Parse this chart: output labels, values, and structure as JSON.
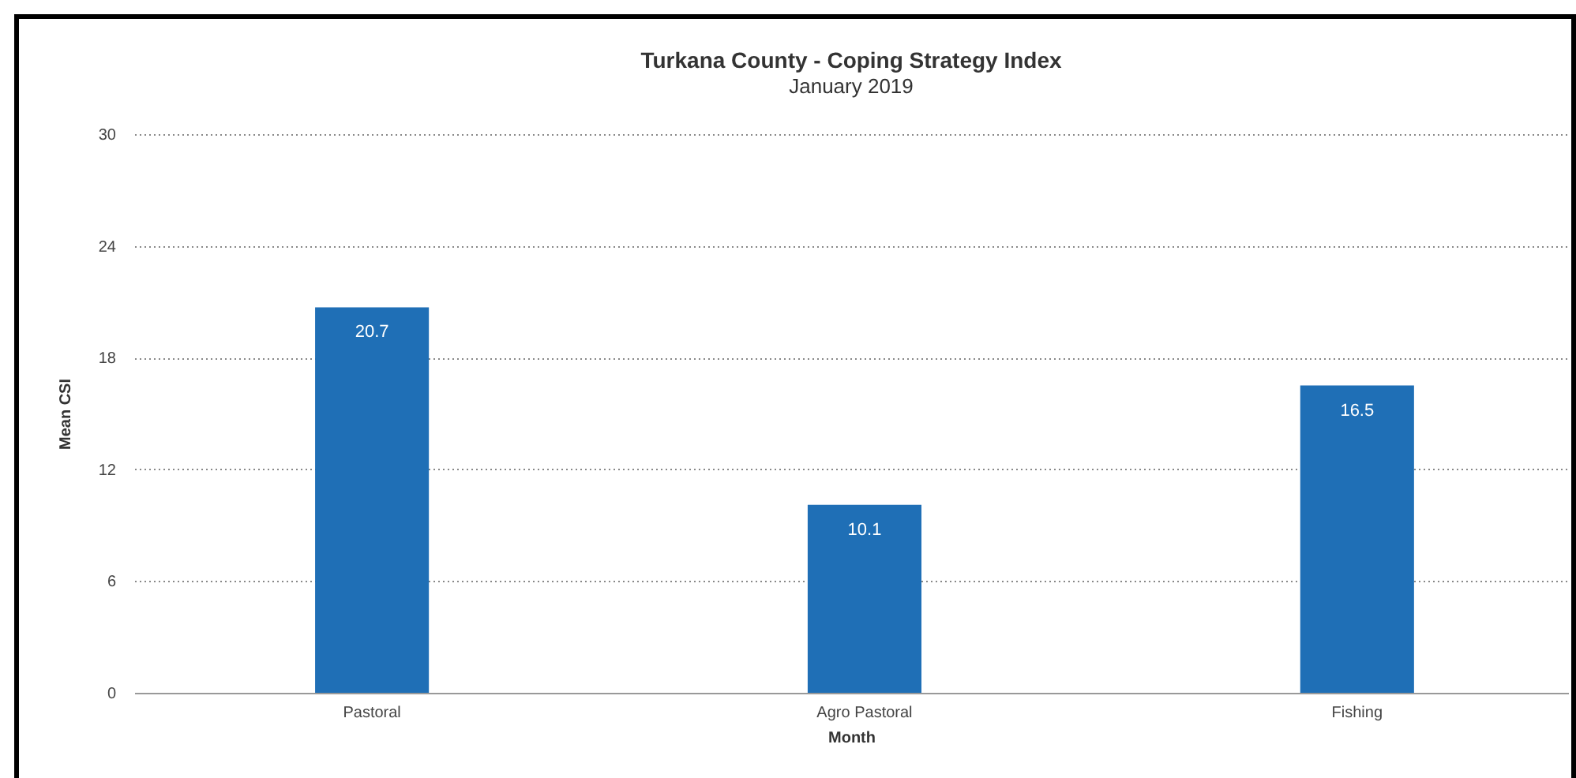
{
  "chart_data": {
    "type": "bar",
    "title": "Turkana County - Coping Strategy Index",
    "subtitle": "January 2019",
    "xlabel": "Month",
    "ylabel": "Mean CSI",
    "categories": [
      "Pastoral",
      "Agro Pastoral",
      "Fishing"
    ],
    "values": [
      20.7,
      10.1,
      16.5
    ],
    "color": "#1f6fb6",
    "ylim": [
      0,
      30
    ],
    "yticks": [
      0,
      6,
      12,
      18,
      24,
      30
    ],
    "grid": "y",
    "data_labels": true
  }
}
